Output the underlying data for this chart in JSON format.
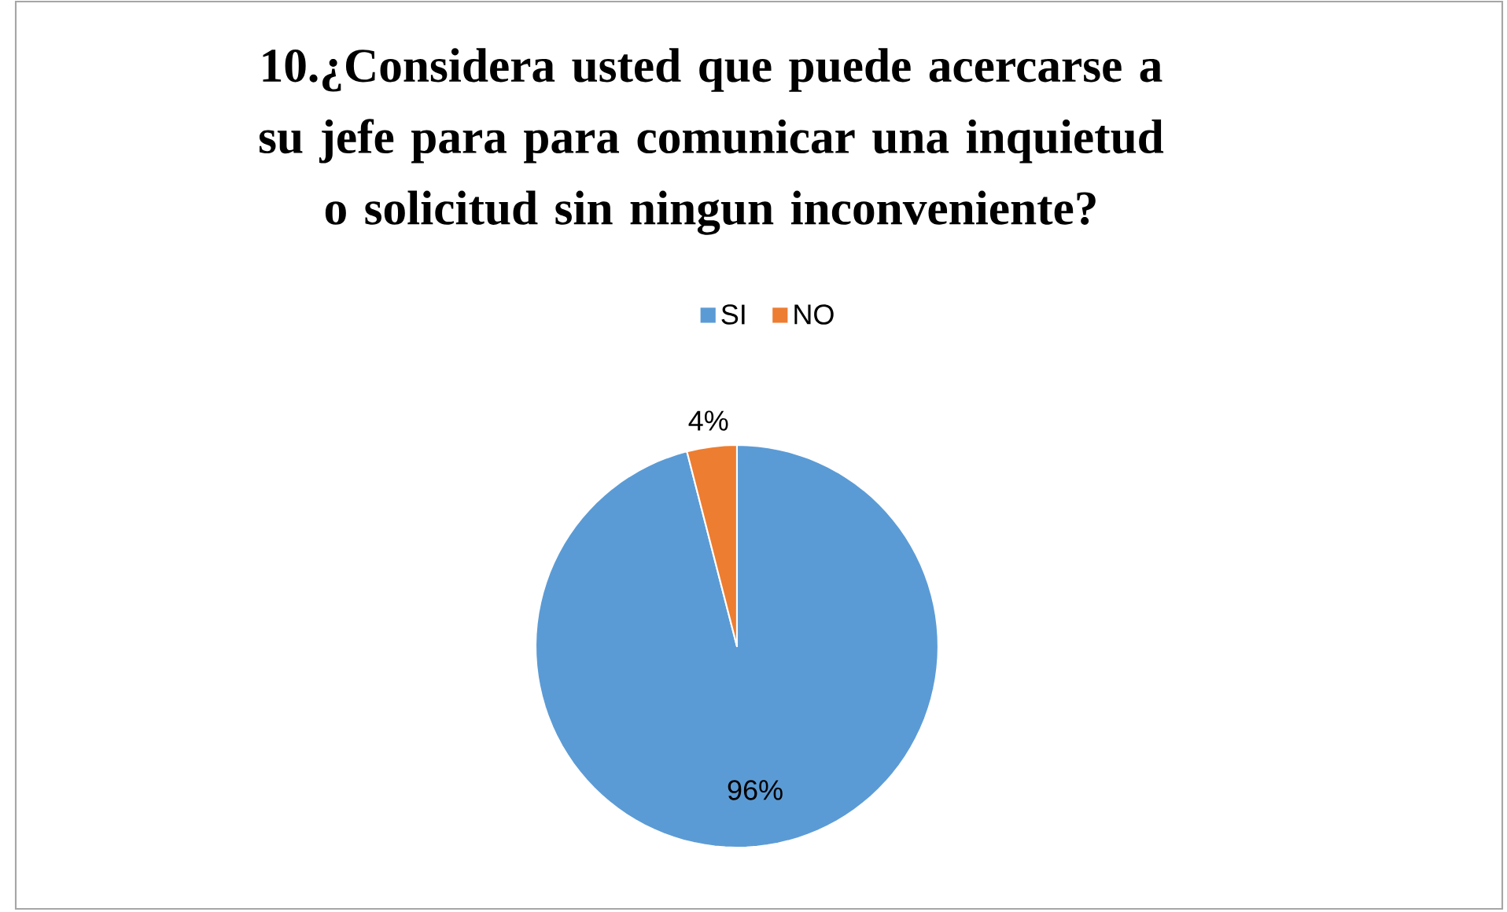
{
  "chart_data": {
    "type": "pie",
    "title": "10.¿Considera usted que puede acercarse a su jefe para para comunicar una inquietud o solicitud sin ningun inconveniente?",
    "categories": [
      "SI",
      "NO"
    ],
    "values": [
      96,
      4
    ],
    "colors": [
      "#5b9bd5",
      "#ed7d31"
    ],
    "value_labels": [
      "96%",
      "4%"
    ],
    "legend": "top"
  }
}
